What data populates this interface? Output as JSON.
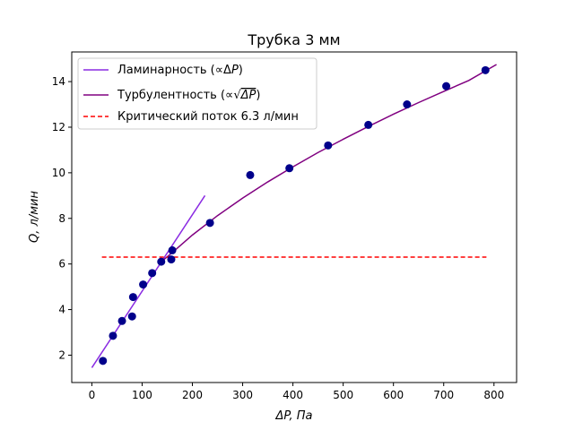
{
  "chart_data": {
    "type": "scatter",
    "title": "Трубка 3 мм",
    "xlabel": "ΔP, Па",
    "ylabel": "Q, л/мин",
    "xlim": [
      -40,
      845
    ],
    "ylim": [
      0.8,
      15.3
    ],
    "xticks": [
      0,
      100,
      200,
      300,
      400,
      500,
      600,
      700,
      800
    ],
    "yticks": [
      2,
      4,
      6,
      8,
      10,
      12,
      14
    ],
    "xtick_labels": [
      "0",
      "100",
      "200",
      "300",
      "400",
      "500",
      "600",
      "700",
      "800"
    ],
    "ytick_labels": [
      "2",
      "4",
      "6",
      "8",
      "10",
      "12",
      "14"
    ],
    "grid": false,
    "legend_position": "top-left",
    "legend": {
      "laminar": {
        "prefix": "Ламинарность (∝Δ",
        "var": "P",
        "suffix": ")"
      },
      "turbulent": {
        "prefix": "Турбулентность (∝",
        "radicand": "ΔP",
        "suffix": ")"
      },
      "critical": {
        "label": "Критический поток 6.3 л/мин"
      }
    },
    "series": [
      {
        "kind": "scatter",
        "color": "#00008b",
        "x": [
          22,
          42,
          60,
          80,
          82,
          102,
          120,
          138,
          158,
          160,
          235,
          315,
          393,
          470,
          550,
          627,
          705,
          783
        ],
        "y": [
          1.75,
          2.85,
          3.5,
          3.7,
          4.55,
          5.1,
          5.6,
          6.1,
          6.2,
          6.6,
          7.8,
          9.9,
          10.2,
          11.2,
          12.1,
          13.0,
          13.8,
          14.5
        ]
      },
      {
        "kind": "line",
        "color": "#8a2be2",
        "style": "solid",
        "x": [
          0,
          225
        ],
        "y": [
          1.45,
          9.0
        ]
      },
      {
        "kind": "line",
        "color": "#800080",
        "style": "solid",
        "x": [
          140,
          160,
          200,
          250,
          300,
          350,
          400,
          450,
          500,
          550,
          600,
          650,
          700,
          750,
          805
        ],
        "y": [
          6.13,
          6.5,
          7.27,
          8.12,
          8.89,
          9.6,
          10.26,
          10.89,
          11.47,
          12.03,
          12.57,
          13.08,
          13.57,
          14.05,
          14.75
        ]
      },
      {
        "kind": "hline",
        "color": "#ff0000",
        "style": "dashed",
        "y": 6.3,
        "xmin": 20,
        "xmax": 785
      }
    ]
  }
}
